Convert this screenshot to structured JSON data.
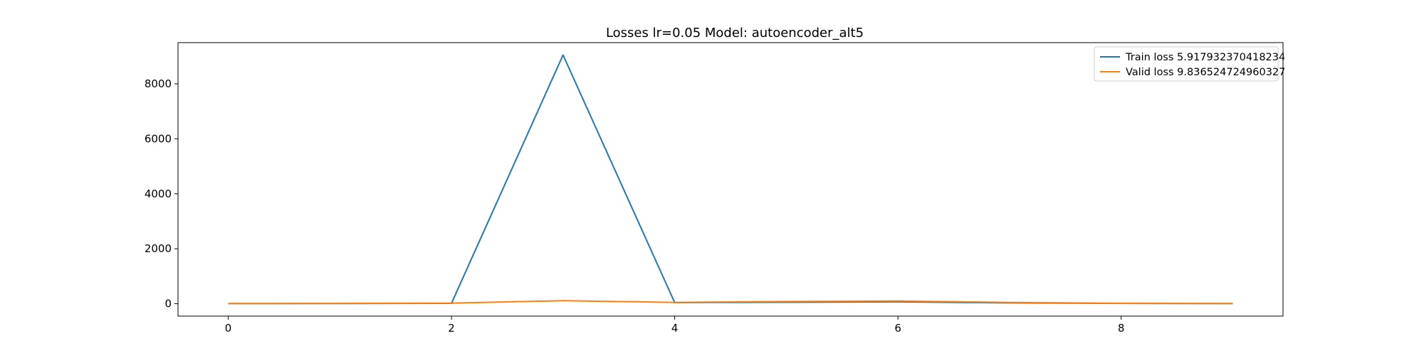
{
  "chart_data": {
    "type": "line",
    "title": "Losses lr=0.05 Model: autoencoder_alt5",
    "xlabel": "",
    "ylabel": "",
    "x": [
      0,
      1,
      2,
      3,
      4,
      5,
      6,
      7,
      8,
      9
    ],
    "series": [
      {
        "name": "Train loss 5.917932370418234",
        "color": "#1f77b4",
        "values": [
          5,
          8,
          15,
          9050,
          40,
          55,
          70,
          30,
          12,
          6
        ]
      },
      {
        "name": "Valid loss 9.836524724960327",
        "color": "#ff7f0e",
        "values": [
          8,
          12,
          20,
          110,
          50,
          80,
          100,
          45,
          15,
          10
        ]
      }
    ],
    "xlim": [
      -0.45,
      9.45
    ],
    "ylim": [
      -450,
      9500
    ],
    "xticks": [
      "0",
      "2",
      "4",
      "6",
      "8"
    ],
    "yticks": [
      "0",
      "2000",
      "4000",
      "6000",
      "8000"
    ],
    "xtick_values": [
      0,
      2,
      4,
      6,
      8
    ],
    "ytick_values": [
      0,
      2000,
      4000,
      6000,
      8000
    ],
    "grid": false,
    "legend_position": "top-right"
  }
}
